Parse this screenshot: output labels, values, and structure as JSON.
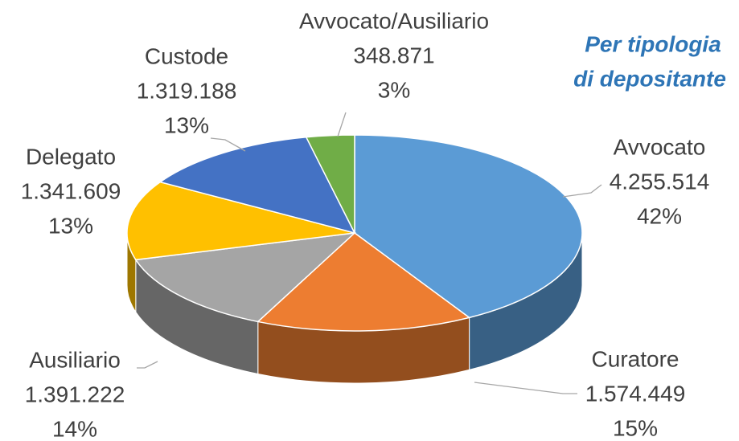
{
  "chart_data": {
    "type": "pie",
    "title": [
      "Per tipologia",
      "di depositante"
    ],
    "categories": [
      "Avvocato",
      "Curatore",
      "Ausiliario",
      "Delegato",
      "Custode",
      "Avvocato/Ausiliario"
    ],
    "values": [
      4255514,
      1574449,
      1391222,
      1341609,
      1319188,
      348871
    ],
    "value_labels": [
      "4.255.514",
      "1.574.449",
      "1.391.222",
      "1.341.609",
      "1.319.188",
      "348.871"
    ],
    "percentages": [
      {
        "value": 42,
        "label": "42%"
      },
      {
        "value": 15,
        "label": "15%"
      },
      {
        "value": 14,
        "label": "14%"
      },
      {
        "value": 13,
        "label": "13%"
      },
      {
        "value": 13,
        "label": "13%"
      },
      {
        "value": 3,
        "label": "3%"
      }
    ],
    "colors": [
      "#5b9bd5",
      "#ed7d31",
      "#a5a5a5",
      "#ffc000",
      "#4472c4",
      "#70ad47"
    ]
  }
}
